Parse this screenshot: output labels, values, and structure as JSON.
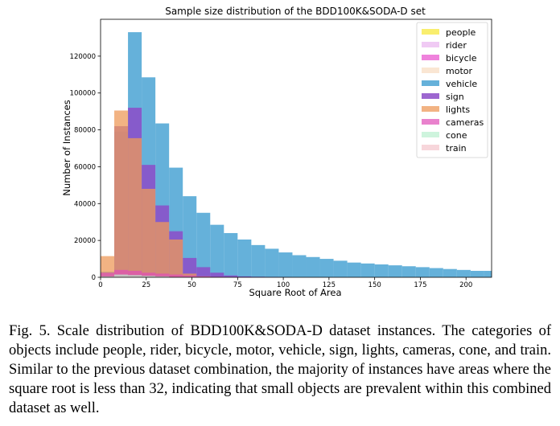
{
  "chart_data": {
    "type": "bar",
    "title": "Sample size distribution of the BDD100K&SODA-D set",
    "xlabel": "Square Root of Area",
    "ylabel": "Number of Instances",
    "xlim": [
      0,
      214
    ],
    "ylim": [
      0,
      140000
    ],
    "xticks": [
      0,
      25,
      50,
      75,
      100,
      125,
      150,
      175,
      200
    ],
    "yticks": [
      0,
      20000,
      40000,
      60000,
      80000,
      100000,
      120000
    ],
    "bin_width": 7.5,
    "bin_starts": [
      0,
      7.5,
      15,
      22.5,
      30,
      37.5,
      45,
      52.5,
      60,
      67.5,
      75,
      82.5,
      90,
      97.5,
      105,
      112.5,
      120,
      127.5,
      135,
      142.5,
      150,
      157.5,
      165,
      172.5,
      180,
      187.5,
      195,
      202.5,
      210
    ],
    "legend_position": "top-right",
    "grid": false,
    "series": [
      {
        "name": "people",
        "color": "#f7ea4a",
        "alpha": 0.8,
        "values": [
          0,
          500,
          400,
          300,
          200,
          100,
          50,
          30,
          10,
          0,
          0,
          0,
          0,
          0,
          0,
          0,
          0,
          0,
          0,
          0,
          0,
          0,
          0,
          0,
          0,
          0,
          0,
          0,
          0
        ]
      },
      {
        "name": "rider",
        "color": "#e9b3f0",
        "alpha": 0.7,
        "values": [
          0,
          800,
          600,
          400,
          200,
          100,
          50,
          0,
          0,
          0,
          0,
          0,
          0,
          0,
          0,
          0,
          0,
          0,
          0,
          0,
          0,
          0,
          0,
          0,
          0,
          0,
          0,
          0,
          0
        ]
      },
      {
        "name": "bicycle",
        "color": "#e84dcd",
        "alpha": 0.7,
        "values": [
          0,
          600,
          500,
          400,
          300,
          200,
          100,
          50,
          0,
          0,
          0,
          0,
          0,
          0,
          0,
          0,
          0,
          0,
          0,
          0,
          0,
          0,
          0,
          0,
          0,
          0,
          0,
          0,
          0
        ]
      },
      {
        "name": "motor",
        "color": "#f8dcc0",
        "alpha": 0.7,
        "values": [
          0,
          500,
          400,
          300,
          200,
          100,
          50,
          0,
          0,
          0,
          0,
          0,
          0,
          0,
          0,
          0,
          0,
          0,
          0,
          0,
          0,
          0,
          0,
          0,
          0,
          0,
          0,
          0,
          0
        ]
      },
      {
        "name": "vehicle",
        "color": "#4aa3d3",
        "alpha": 0.85,
        "values": [
          3000,
          79000,
          133000,
          108500,
          83500,
          59500,
          44000,
          35000,
          28500,
          24000,
          20500,
          17500,
          15500,
          13500,
          12000,
          11000,
          10000,
          9000,
          8000,
          7500,
          7000,
          6500,
          6000,
          5500,
          5000,
          4500,
          4000,
          3500,
          3500
        ]
      },
      {
        "name": "sign",
        "color": "#8c4cc8",
        "alpha": 0.85,
        "values": [
          1000,
          82000,
          92000,
          61000,
          39000,
          25000,
          10500,
          5500,
          2500,
          1000,
          500,
          300,
          200,
          100,
          0,
          0,
          0,
          0,
          0,
          0,
          0,
          0,
          0,
          0,
          0,
          0,
          0,
          0,
          0
        ]
      },
      {
        "name": "lights",
        "color": "#ee9a5a",
        "alpha": 0.75,
        "values": [
          11500,
          90500,
          75500,
          48000,
          30000,
          20500,
          2000,
          500,
          200,
          100,
          0,
          0,
          0,
          0,
          0,
          0,
          0,
          0,
          0,
          0,
          0,
          0,
          0,
          0,
          0,
          0,
          0,
          0,
          0
        ]
      },
      {
        "name": "cameras",
        "color": "#e04db8",
        "alpha": 0.7,
        "values": [
          2500,
          4000,
          3500,
          2500,
          2000,
          1500,
          1000,
          500,
          300,
          100,
          0,
          0,
          0,
          0,
          0,
          0,
          0,
          0,
          0,
          0,
          0,
          0,
          0,
          0,
          0,
          0,
          0,
          0,
          0
        ]
      },
      {
        "name": "cone",
        "color": "#b9f0cf",
        "alpha": 0.7,
        "values": [
          500,
          1500,
          1200,
          800,
          500,
          200,
          100,
          0,
          0,
          0,
          0,
          0,
          0,
          0,
          0,
          0,
          0,
          0,
          0,
          0,
          0,
          0,
          0,
          0,
          0,
          0,
          0,
          0,
          0
        ]
      },
      {
        "name": "train",
        "color": "#f4c5cc",
        "alpha": 0.7,
        "values": [
          100,
          300,
          300,
          200,
          200,
          100,
          100,
          50,
          50,
          0,
          0,
          0,
          0,
          0,
          0,
          0,
          0,
          0,
          0,
          0,
          0,
          0,
          0,
          0,
          0,
          0,
          0,
          0,
          0
        ]
      }
    ]
  },
  "caption": "Fig. 5.    Scale distribution of BDD100K&SODA-D dataset instances. The categories of objects include people, rider, bicycle, motor, vehicle, sign, lights, cameras, cone, and train. Similar to the previous dataset combination, the majority of instances have areas where the square root is less than 32, indicating that small objects are prevalent within this combined dataset as well."
}
